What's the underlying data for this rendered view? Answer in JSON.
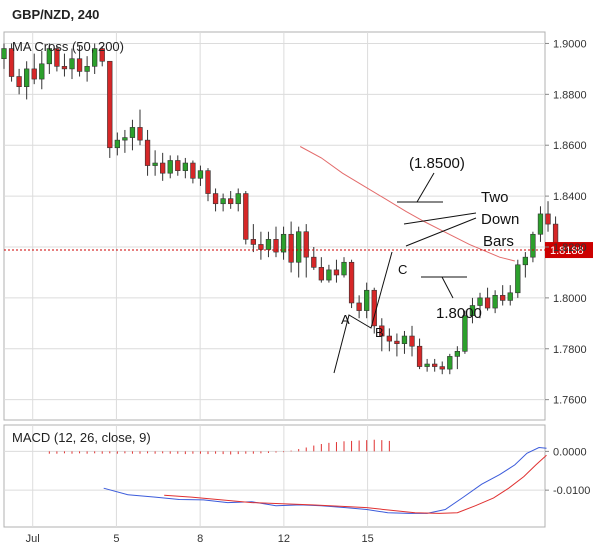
{
  "header": {
    "title": "GBP/NZD, 240"
  },
  "colors": {
    "up": "#2ca02c",
    "down": "#d62728",
    "ma": "#e36b6b",
    "macd_line": "#3b5bdb",
    "signal_line": "#e03131",
    "hist": "#e03131",
    "price_line": "#cc0000",
    "grid": "#dcdcdc",
    "annotation": "#111111"
  },
  "chart_data": [
    {
      "type": "candlestick",
      "title": "MA Cross (50, 200)",
      "ylim": [
        1.752,
        1.9045
      ],
      "yticks": [
        1.76,
        1.78,
        1.8,
        1.82,
        1.84,
        1.86,
        1.88,
        1.9
      ],
      "ytick_labels": [
        "1.7600",
        "1.7800",
        "1.8000",
        "1.8200",
        "1.8400",
        "1.8600",
        "1.8800",
        "1.9000"
      ],
      "xlim": [
        0,
        17.9
      ],
      "xticks": [
        0.95,
        3.72,
        6.49,
        9.26,
        12.03
      ],
      "xtick_labels": [
        "Jul",
        "5",
        "8",
        "12",
        "15"
      ],
      "grid": true,
      "current_price": {
        "value": 1.8188,
        "label": "1.8188"
      },
      "candles": [
        [
          1.894,
          1.9,
          1.89,
          1.898
        ],
        [
          1.898,
          1.9,
          1.885,
          1.887
        ],
        [
          1.887,
          1.89,
          1.88,
          1.883
        ],
        [
          1.883,
          1.893,
          1.878,
          1.89
        ],
        [
          1.89,
          1.896,
          1.884,
          1.886
        ],
        [
          1.886,
          1.897,
          1.882,
          1.892
        ],
        [
          1.892,
          1.9,
          1.888,
          1.898
        ],
        [
          1.898,
          1.899,
          1.889,
          1.891
        ],
        [
          1.891,
          1.896,
          1.887,
          1.89
        ],
        [
          1.89,
          1.898,
          1.886,
          1.894
        ],
        [
          1.894,
          1.899,
          1.887,
          1.889
        ],
        [
          1.889,
          1.895,
          1.885,
          1.891
        ],
        [
          1.891,
          1.9,
          1.888,
          1.898
        ],
        [
          1.898,
          1.899,
          1.891,
          1.893
        ],
        [
          1.893,
          1.893,
          1.855,
          1.859
        ],
        [
          1.859,
          1.865,
          1.856,
          1.862
        ],
        [
          1.862,
          1.866,
          1.857,
          1.863
        ],
        [
          1.863,
          1.87,
          1.858,
          1.867
        ],
        [
          1.867,
          1.874,
          1.86,
          1.862
        ],
        [
          1.862,
          1.866,
          1.848,
          1.852
        ],
        [
          1.852,
          1.858,
          1.848,
          1.853
        ],
        [
          1.853,
          1.857,
          1.846,
          1.849
        ],
        [
          1.849,
          1.856,
          1.847,
          1.854
        ],
        [
          1.854,
          1.856,
          1.848,
          1.85
        ],
        [
          1.85,
          1.855,
          1.847,
          1.853
        ],
        [
          1.853,
          1.854,
          1.845,
          1.847
        ],
        [
          1.847,
          1.852,
          1.844,
          1.85
        ],
        [
          1.85,
          1.851,
          1.838,
          1.841
        ],
        [
          1.841,
          1.843,
          1.834,
          1.837
        ],
        [
          1.837,
          1.841,
          1.834,
          1.839
        ],
        [
          1.839,
          1.842,
          1.835,
          1.837
        ],
        [
          1.837,
          1.843,
          1.834,
          1.841
        ],
        [
          1.841,
          1.842,
          1.821,
          1.823
        ],
        [
          1.823,
          1.829,
          1.818,
          1.821
        ],
        [
          1.821,
          1.826,
          1.815,
          1.819
        ],
        [
          1.819,
          1.826,
          1.816,
          1.823
        ],
        [
          1.823,
          1.828,
          1.816,
          1.818
        ],
        [
          1.818,
          1.828,
          1.815,
          1.825
        ],
        [
          1.825,
          1.83,
          1.81,
          1.814
        ],
        [
          1.814,
          1.828,
          1.808,
          1.826
        ],
        [
          1.826,
          1.829,
          1.808,
          1.816
        ],
        [
          1.816,
          1.82,
          1.811,
          1.812
        ],
        [
          1.812,
          1.816,
          1.806,
          1.807
        ],
        [
          1.807,
          1.813,
          1.806,
          1.811
        ],
        [
          1.811,
          1.815,
          1.806,
          1.809
        ],
        [
          1.809,
          1.816,
          1.808,
          1.814
        ],
        [
          1.814,
          1.815,
          1.796,
          1.798
        ],
        [
          1.798,
          1.801,
          1.792,
          1.795
        ],
        [
          1.795,
          1.806,
          1.792,
          1.803
        ],
        [
          1.803,
          1.804,
          1.786,
          1.789
        ],
        [
          1.789,
          1.792,
          1.779,
          1.785
        ],
        [
          1.785,
          1.788,
          1.779,
          1.783
        ],
        [
          1.783,
          1.786,
          1.777,
          1.782
        ],
        [
          1.782,
          1.787,
          1.778,
          1.785
        ],
        [
          1.785,
          1.789,
          1.777,
          1.781
        ],
        [
          1.781,
          1.784,
          1.772,
          1.773
        ],
        [
          1.773,
          1.776,
          1.771,
          1.774
        ],
        [
          1.774,
          1.776,
          1.771,
          1.773
        ],
        [
          1.773,
          1.775,
          1.77,
          1.772
        ],
        [
          1.772,
          1.778,
          1.77,
          1.777
        ],
        [
          1.777,
          1.781,
          1.772,
          1.779
        ],
        [
          1.779,
          1.795,
          1.778,
          1.793
        ],
        [
          1.793,
          1.8,
          1.79,
          1.797
        ],
        [
          1.797,
          1.802,
          1.792,
          1.8
        ],
        [
          1.8,
          1.804,
          1.795,
          1.796
        ],
        [
          1.796,
          1.803,
          1.794,
          1.801
        ],
        [
          1.801,
          1.805,
          1.797,
          1.799
        ],
        [
          1.799,
          1.805,
          1.797,
          1.802
        ],
        [
          1.802,
          1.815,
          1.8,
          1.813
        ],
        [
          1.813,
          1.818,
          1.808,
          1.816
        ],
        [
          1.816,
          1.826,
          1.814,
          1.825
        ],
        [
          1.825,
          1.836,
          1.822,
          1.833
        ],
        [
          1.833,
          1.838,
          1.826,
          1.829
        ],
        [
          1.829,
          1.832,
          1.819,
          1.82
        ]
      ],
      "ma_50": [
        [
          9.8,
          1.8595
        ],
        [
          10.5,
          1.855
        ],
        [
          11.2,
          1.849
        ],
        [
          11.9,
          1.844
        ],
        [
          12.6,
          1.839
        ],
        [
          13.3,
          1.834
        ],
        [
          13.9,
          1.83
        ],
        [
          14.4,
          1.827
        ],
        [
          14.9,
          1.824
        ],
        [
          15.4,
          1.821
        ],
        [
          15.9,
          1.8185
        ],
        [
          16.4,
          1.816
        ],
        [
          16.9,
          1.8145
        ]
      ],
      "annotations": {
        "target_high": "(1.8500)",
        "target_low": "1.8000",
        "note_line1": "Two",
        "note_line2": "Down",
        "note_line3": "Bars",
        "point_a": "A",
        "point_b": "B",
        "point_c": "C"
      }
    },
    {
      "type": "macd",
      "title": "MACD (12, 26, close, 9)",
      "ylim": [
        -0.0195,
        0.0068
      ],
      "yticks": [
        0.0,
        -0.01
      ],
      "ytick_labels": [
        "0.0000",
        "-0.0100"
      ],
      "grid": true,
      "histogram": {
        "start": 6,
        "values": [
          -0.0006,
          -0.0006,
          -0.0005,
          -0.0006,
          -0.0005,
          -0.0006,
          -0.0005,
          -0.0006,
          -0.0005,
          -0.0006,
          -0.0005,
          -0.0006,
          -0.0006,
          -0.0005,
          -0.0006,
          -0.0005,
          -0.0006,
          -0.0006,
          -0.0007,
          -0.0006,
          -0.0006,
          -0.0007,
          -0.0006,
          -0.0007,
          -0.0008,
          -0.0007,
          -0.0006,
          -0.0006,
          -0.0005,
          -0.0004,
          -0.0003,
          -0.0002,
          0.0002,
          0.0006,
          0.001,
          0.0015,
          0.0019,
          0.0022,
          0.0024,
          0.0026,
          0.0027,
          0.0028,
          0.0029,
          0.003,
          0.0029,
          0.0027
        ]
      },
      "macd": [
        [
          3.3,
          -0.0095
        ],
        [
          4.1,
          -0.0112
        ],
        [
          5.0,
          -0.0118
        ],
        [
          5.8,
          -0.0124
        ],
        [
          6.6,
          -0.0125
        ],
        [
          7.4,
          -0.0132
        ],
        [
          8.2,
          -0.013
        ],
        [
          9.0,
          -0.014
        ],
        [
          9.8,
          -0.0138
        ],
        [
          10.5,
          -0.014
        ],
        [
          11.3,
          -0.0145
        ],
        [
          12.0,
          -0.015
        ],
        [
          12.7,
          -0.0158
        ],
        [
          13.4,
          -0.016
        ],
        [
          14.0,
          -0.016
        ],
        [
          14.6,
          -0.015
        ],
        [
          15.2,
          -0.0118
        ],
        [
          15.8,
          -0.0085
        ],
        [
          16.4,
          -0.006
        ],
        [
          16.9,
          -0.0035
        ],
        [
          17.3,
          -0.0005
        ],
        [
          17.7,
          0.001
        ],
        [
          17.95,
          0.0008
        ]
      ],
      "signal": [
        [
          5.3,
          -0.0113
        ],
        [
          6.2,
          -0.0118
        ],
        [
          7.2,
          -0.0125
        ],
        [
          8.2,
          -0.0132
        ],
        [
          9.2,
          -0.0135
        ],
        [
          10.2,
          -0.0138
        ],
        [
          11.2,
          -0.0142
        ],
        [
          12.0,
          -0.0145
        ],
        [
          12.8,
          -0.0152
        ],
        [
          13.6,
          -0.0158
        ],
        [
          14.4,
          -0.016
        ],
        [
          15.0,
          -0.0158
        ],
        [
          15.6,
          -0.014
        ],
        [
          16.2,
          -0.012
        ],
        [
          16.7,
          -0.0095
        ],
        [
          17.2,
          -0.0065
        ],
        [
          17.6,
          -0.0035
        ],
        [
          17.95,
          -0.001
        ]
      ]
    }
  ]
}
